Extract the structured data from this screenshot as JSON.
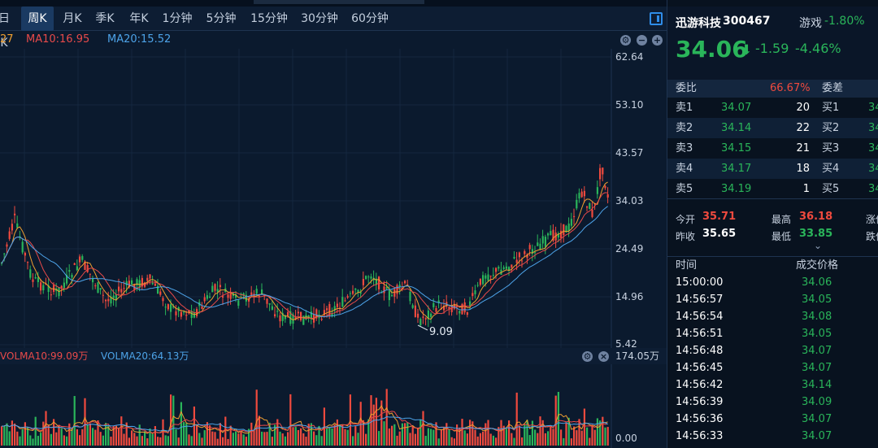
{
  "tabs": [
    {
      "label": "日K",
      "active": false
    },
    {
      "label": "周K",
      "active": true
    },
    {
      "label": "月K",
      "active": false
    },
    {
      "label": "季K",
      "active": false
    },
    {
      "label": "年K",
      "active": false
    },
    {
      "label": "1分钟",
      "active": false
    },
    {
      "label": "5分钟",
      "active": false
    },
    {
      "label": "15分钟",
      "active": false
    },
    {
      "label": "30分钟",
      "active": false
    },
    {
      "label": "60分钟",
      "active": false
    }
  ],
  "ma": {
    "ma5_partial": "27",
    "ma10": "MA10:16.95",
    "ma20": "MA20:15.52"
  },
  "main_axis": [
    "62.64",
    "53.10",
    "43.57",
    "34.03",
    "24.49",
    "14.96",
    "5.42"
  ],
  "low_annotation": "9.09",
  "volume": {
    "volma10": "VOLMA10:99.09万",
    "volma20": "VOLMA20:64.13万",
    "axis_top": "174.05万",
    "axis_bottom": "0.00"
  },
  "stock": {
    "name": "迅游科技",
    "code": "300467",
    "sector": "游戏",
    "sector_change": "-1.80%",
    "price": "34.06",
    "arrow": "⬇",
    "change": "-1.59",
    "change_pct": "-4.46%"
  },
  "ratio": {
    "label": "委比",
    "value": "66.67%",
    "diff_label": "委差"
  },
  "sells": [
    {
      "label": "卖1",
      "price": "34.07",
      "vol": "20"
    },
    {
      "label": "卖2",
      "price": "34.14",
      "vol": "22"
    },
    {
      "label": "卖3",
      "price": "34.15",
      "vol": "21"
    },
    {
      "label": "卖4",
      "price": "34.17",
      "vol": "18"
    },
    {
      "label": "卖5",
      "price": "34.19",
      "vol": "1"
    }
  ],
  "buys": [
    {
      "label": "买1",
      "price": "34"
    },
    {
      "label": "买2",
      "price": "34"
    },
    {
      "label": "买3",
      "price": "34"
    },
    {
      "label": "买4",
      "price": "34"
    },
    {
      "label": "买5",
      "price": "34"
    }
  ],
  "stats": {
    "open_label": "今开",
    "open": "35.71",
    "high_label": "最高",
    "high": "36.18",
    "prev_label": "昨收",
    "prev": "35.65",
    "low_label": "最低",
    "low": "33.85",
    "limit_up_label": "涨停",
    "limit_down_label": "跌停"
  },
  "trades_header": {
    "time": "时间",
    "price": "成交价格"
  },
  "trades": [
    {
      "time": "15:00:00",
      "price": "34.06"
    },
    {
      "time": "14:56:57",
      "price": "34.05"
    },
    {
      "time": "14:56:54",
      "price": "34.08"
    },
    {
      "time": "14:56:51",
      "price": "34.05"
    },
    {
      "time": "14:56:48",
      "price": "34.07"
    },
    {
      "time": "14:56:45",
      "price": "34.07"
    },
    {
      "time": "14:56:42",
      "price": "34.14"
    },
    {
      "time": "14:56:39",
      "price": "34.09"
    },
    {
      "time": "14:56:36",
      "price": "34.07"
    },
    {
      "time": "14:56:33",
      "price": "34.07"
    }
  ],
  "colors": {
    "up": "#f04a3e",
    "down": "#2ab55a",
    "ma5": "#f0a030",
    "ma10": "#e84a4a",
    "ma20": "#4da3e8"
  }
}
